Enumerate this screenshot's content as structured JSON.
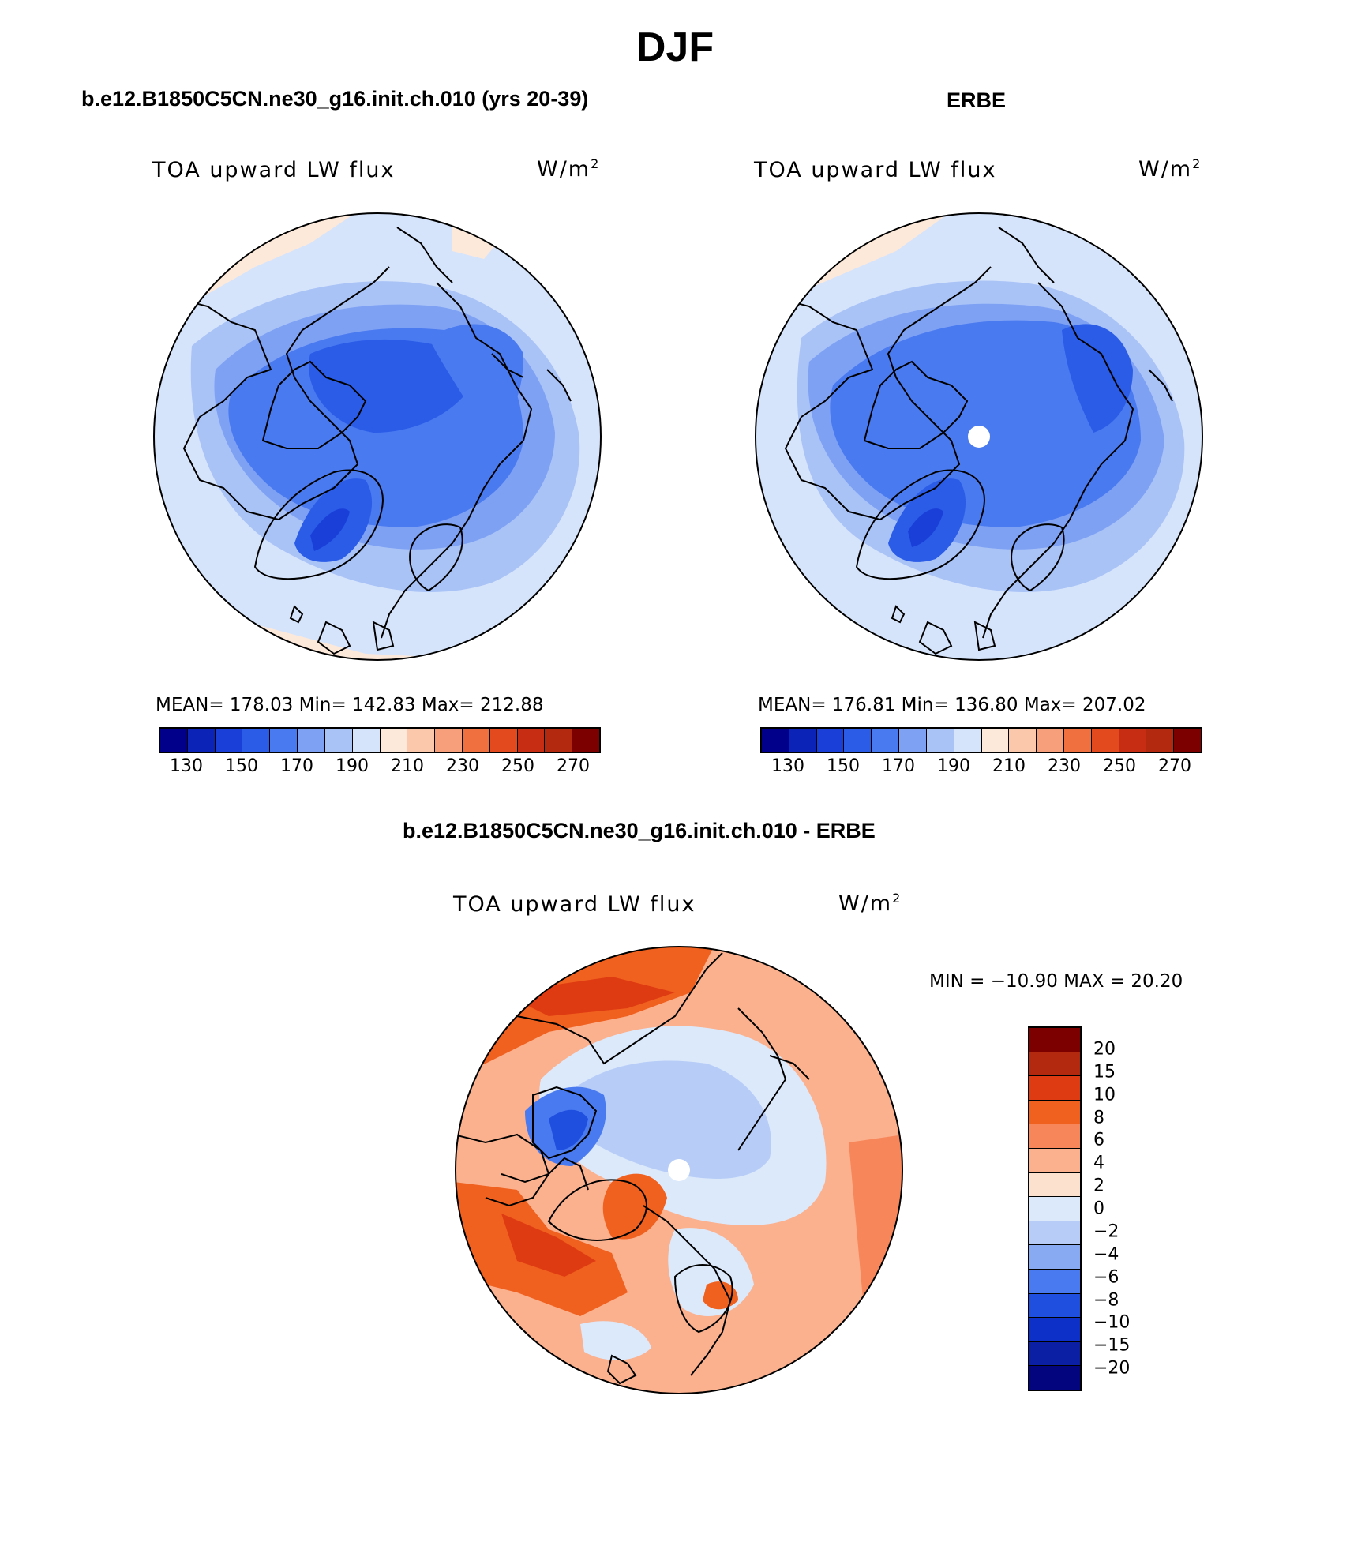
{
  "title": "DJF",
  "panels": [
    {
      "id": "model",
      "title": "b.e12.B1850C5CN.ne30_g16.init.ch.010 (yrs 20-39)",
      "variable": "TOA upward LW flux",
      "units_base": "W/m",
      "units_exp": "2",
      "stats": "MEAN= 178.03   Min= 142.83   Max= 212.88",
      "colorbar_ticks": [
        "130",
        "150",
        "170",
        "190",
        "210",
        "230",
        "250",
        "270"
      ]
    },
    {
      "id": "obs",
      "title": "ERBE",
      "variable": "TOA upward LW flux",
      "units_base": "W/m",
      "units_exp": "2",
      "stats": "MEAN= 176.81   Min= 136.80   Max= 207.02",
      "colorbar_ticks": [
        "130",
        "150",
        "170",
        "190",
        "210",
        "230",
        "250",
        "270"
      ]
    },
    {
      "id": "diff",
      "title": "b.e12.B1850C5CN.ne30_g16.init.ch.010 - ERBE",
      "variable": "TOA upward LW flux",
      "units_base": "W/m",
      "units_exp": "2",
      "stats": "MIN = −10.90 MAX =   20.20",
      "colorbar_ticks": [
        "20",
        "15",
        "10",
        "8",
        "6",
        "4",
        "2",
        "0",
        "−2",
        "−4",
        "−6",
        "−8",
        "−10",
        "−15",
        "−20"
      ]
    }
  ],
  "colors": {
    "abs_scale": [
      "#00008b",
      "#0c23b7",
      "#1a3fd8",
      "#2a5ce8",
      "#4a7af0",
      "#7ea1f4",
      "#a9c3f7",
      "#d6e4fb",
      "#fde9da",
      "#fbc8ab",
      "#f79f7b",
      "#f0713f",
      "#e34a1d",
      "#c72d12",
      "#b3290f",
      "#7c0000"
    ],
    "diff_scale": [
      "#7c0000",
      "#b3290f",
      "#df3b12",
      "#f0601e",
      "#f7875a",
      "#fbb08e",
      "#fde1cf",
      "#dce9fb",
      "#b7cdf7",
      "#87aaf3",
      "#4a7af0",
      "#1f4fdf",
      "#0c30c8",
      "#0a1fa3",
      "#03057f"
    ]
  }
}
